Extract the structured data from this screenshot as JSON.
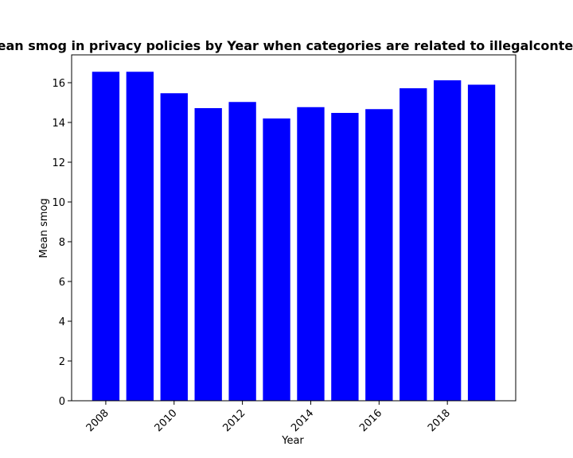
{
  "chart_data": {
    "type": "bar",
    "title": "Mean smog in privacy policies by Year when categories are related to illegalcontent",
    "xlabel": "Year",
    "ylabel": "Mean smog",
    "x": [
      2008,
      2009,
      2010,
      2011,
      2012,
      2013,
      2014,
      2015,
      2016,
      2017,
      2018,
      2019
    ],
    "values": [
      16.55,
      16.55,
      15.47,
      14.72,
      15.03,
      14.2,
      14.77,
      14.48,
      14.67,
      15.72,
      16.12,
      15.9
    ],
    "xticks": [
      2008,
      2010,
      2012,
      2014,
      2016,
      2018
    ],
    "yticks": [
      0,
      2,
      4,
      6,
      8,
      10,
      12,
      14,
      16
    ],
    "xlim": [
      2007.0,
      2020.0
    ],
    "ylim": [
      0,
      17.4
    ],
    "bar_color": "#0000ff",
    "grid": false,
    "legend": "none"
  }
}
